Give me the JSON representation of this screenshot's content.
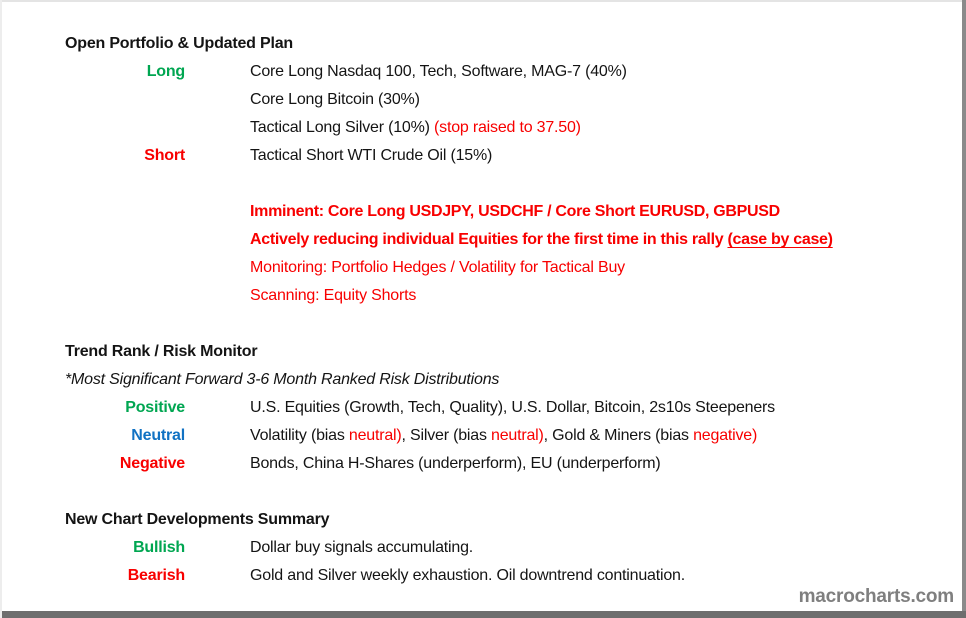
{
  "colors": {
    "green": "#00A651",
    "red": "#F80000",
    "blue": "#1172C3",
    "gray": "#7F7F7F"
  },
  "portfolio": {
    "heading": "Open Portfolio & Updated Plan",
    "rows": [
      {
        "label": "Long",
        "text": "Core Long Nasdaq 100, Tech, Software, MAG-7 (40%)"
      },
      {
        "label": "",
        "text": "Core Long Bitcoin (30%)"
      },
      {
        "label": "",
        "text": "Tactical Long Silver (10%) ",
        "text_red": "(stop raised to 37.50)"
      },
      {
        "label": "Short",
        "text": "Tactical Short WTI Crude Oil (15%)"
      }
    ],
    "notes": [
      {
        "text": "Imminent: Core Long USDJPY, USDCHF / Core Short EURUSD, GBPUSD"
      },
      {
        "text": "Actively reducing individual Equities for the first time in this rally ",
        "underlined": "(case by case)"
      },
      {
        "text": "Monitoring: Portfolio Hedges / Volatility for Tactical Buy"
      },
      {
        "text": "Scanning: Equity Shorts"
      }
    ]
  },
  "trend": {
    "heading": "Trend Rank / Risk Monitor",
    "subheading": "*Most Significant Forward 3-6 Month Ranked Risk Distributions",
    "rows": [
      {
        "label": "Positive",
        "text": "U.S. Equities (Growth, Tech, Quality), U.S. Dollar, Bitcoin, 2s10s Steepeners"
      },
      {
        "label": "Neutral",
        "segments": [
          "Volatility (bias ",
          "neutral)",
          ", Silver (bias ",
          "neutral)",
          ", Gold & Miners (bias ",
          "negative)"
        ]
      },
      {
        "label": "Negative",
        "text": "Bonds, China H-Shares (underperform), EU (underperform)"
      }
    ]
  },
  "developments": {
    "heading": "New Chart Developments Summary",
    "rows": [
      {
        "label": "Bullish",
        "text": "Dollar buy signals accumulating."
      },
      {
        "label": "Bearish",
        "text": "Gold and Silver weekly exhaustion. Oil downtrend continuation."
      }
    ]
  },
  "footer": {
    "watermark": "macrocharts.com"
  }
}
